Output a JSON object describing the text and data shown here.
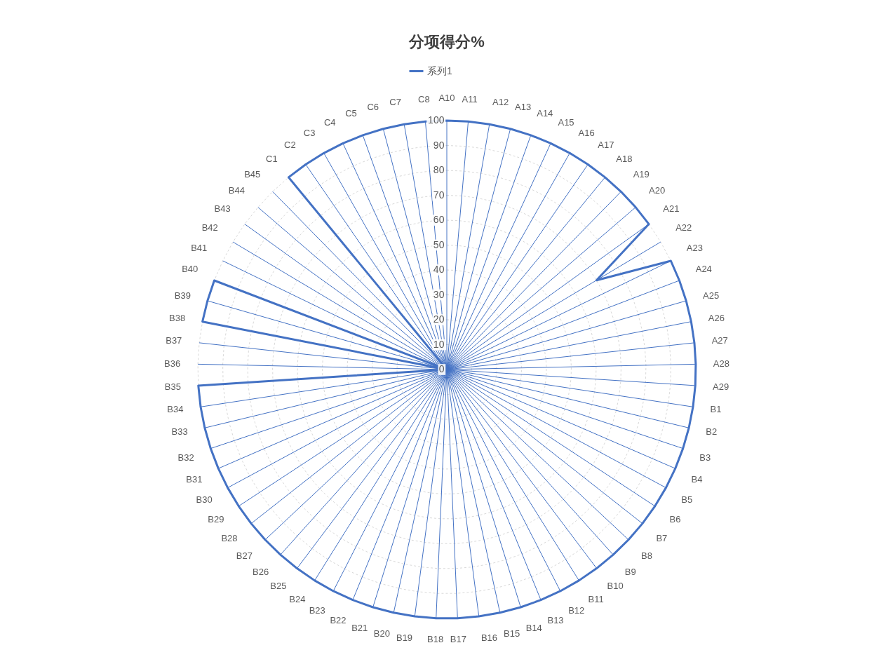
{
  "chart_data": {
    "type": "radar",
    "title": "分项得分%",
    "categories": [
      "A10",
      "A11",
      "A12",
      "A13",
      "A14",
      "A15",
      "A16",
      "A17",
      "A18",
      "A19",
      "A20",
      "A21",
      "A22",
      "A23",
      "A24",
      "A25",
      "A26",
      "A27",
      "A28",
      "A29",
      "B1",
      "B2",
      "B3",
      "B4",
      "B5",
      "B6",
      "B7",
      "B8",
      "B9",
      "B10",
      "B11",
      "B12",
      "B13",
      "B14",
      "B15",
      "B16",
      "B17",
      "B18",
      "B19",
      "B20",
      "B21",
      "B22",
      "B23",
      "B24",
      "B25",
      "B26",
      "B27",
      "B28",
      "B29",
      "B30",
      "B31",
      "B32",
      "B33",
      "B34",
      "B35",
      "B36",
      "B37",
      "B38",
      "B39",
      "B40",
      "B41",
      "B42",
      "B43",
      "B44",
      "B45",
      "C1",
      "C2",
      "C3",
      "C4",
      "C5",
      "C6",
      "C7",
      "C8"
    ],
    "series": [
      {
        "name": "系列1",
        "color": "#4472c4",
        "values": [
          100,
          100,
          100,
          100,
          100,
          100,
          100,
          100,
          100,
          100,
          100,
          100,
          70,
          100,
          100,
          100,
          100,
          100,
          100,
          100,
          100,
          100,
          100,
          100,
          100,
          100,
          100,
          100,
          100,
          100,
          100,
          100,
          100,
          100,
          100,
          100,
          100,
          100,
          100,
          100,
          100,
          100,
          100,
          100,
          100,
          100,
          100,
          100,
          100,
          100,
          100,
          100,
          100,
          100,
          100,
          0,
          0,
          100,
          100,
          100,
          0,
          0,
          0,
          0,
          0,
          100,
          100,
          100,
          100,
          100,
          100,
          100,
          100
        ]
      }
    ],
    "ylim": [
      0,
      100
    ],
    "yticks": [
      0,
      10,
      20,
      30,
      40,
      50,
      60,
      70,
      80,
      90,
      100
    ],
    "grid": true,
    "legend": "top"
  }
}
